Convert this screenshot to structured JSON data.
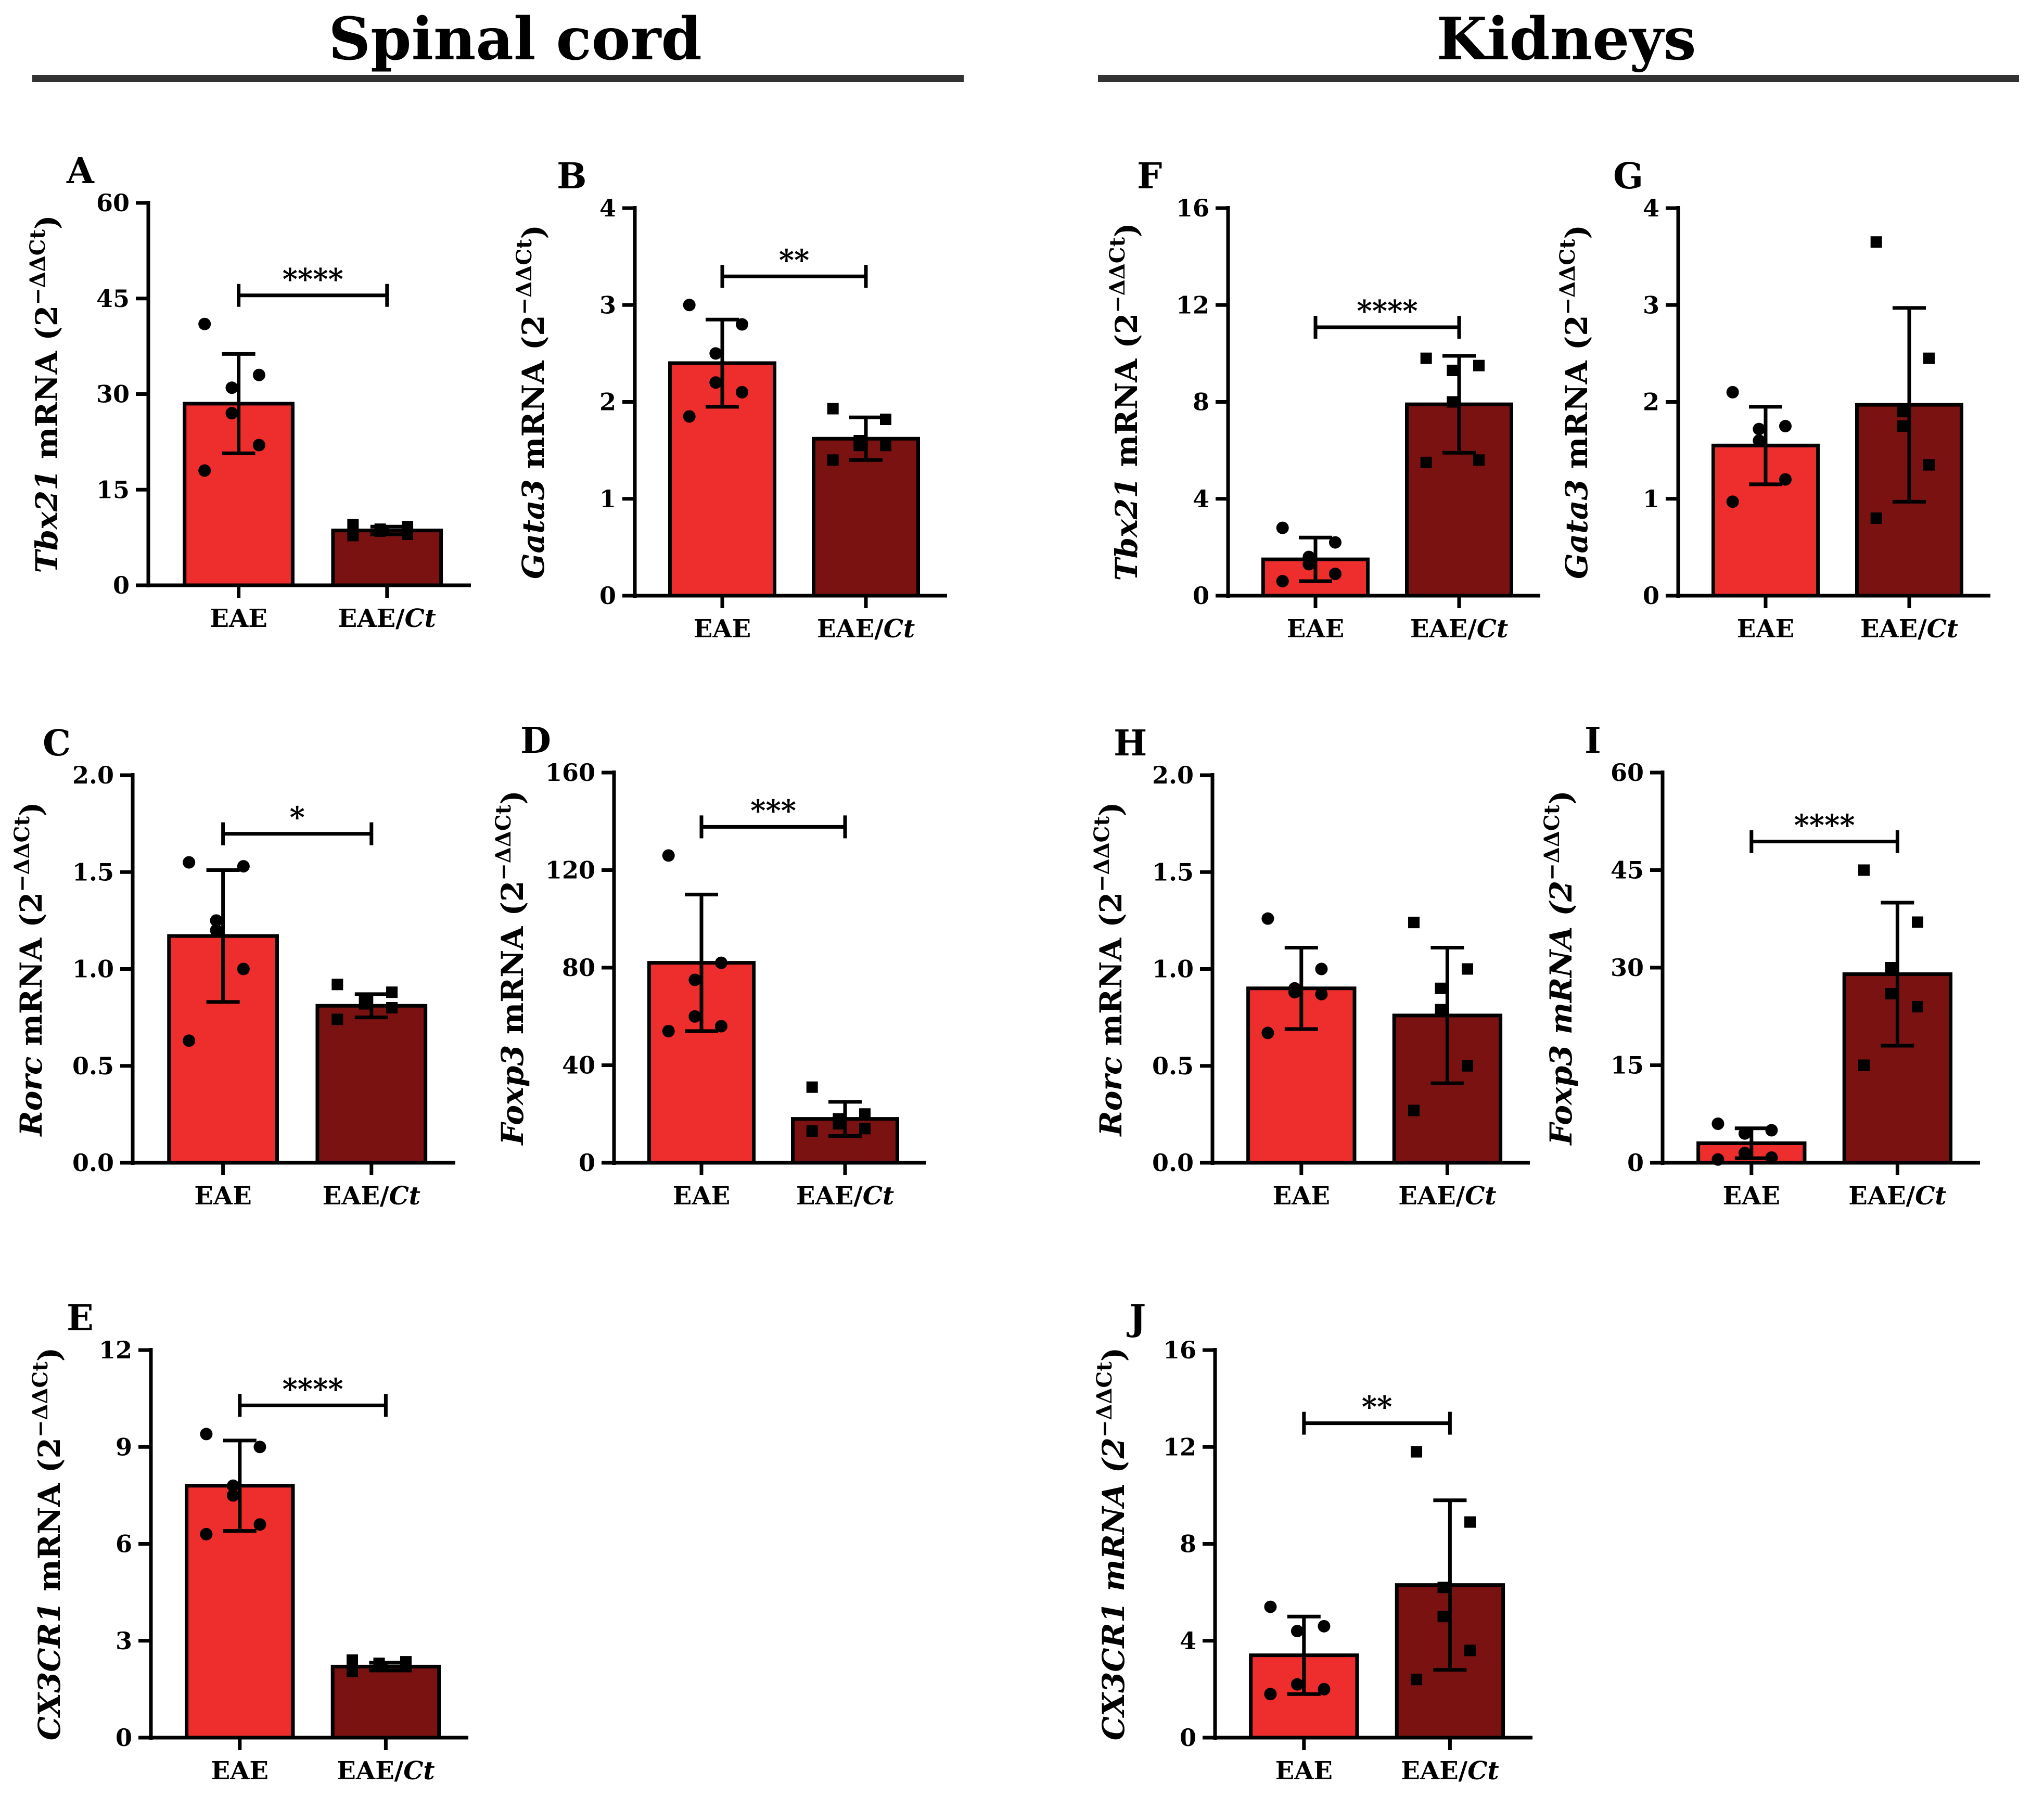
{
  "sections": [
    {
      "title": "Spinal cord"
    },
    {
      "title": "Kidneys"
    }
  ],
  "colors": {
    "eae": "#ee2d2d",
    "eae_ct": "#7a1212",
    "axis": "#000000",
    "rule": "#333333"
  },
  "chart_data": [
    {
      "panel": "A",
      "type": "bar",
      "gene": "Tbx21",
      "gene_italic": true,
      "ylabel_rest": " mRNA (2",
      "ylabel_exp": "−ΔΔCt",
      "ylabel_close": ")",
      "categories": [
        "EAE",
        "EAE/Ct"
      ],
      "ylim": [
        0,
        60
      ],
      "yticks": [
        0,
        15,
        30,
        45,
        60
      ],
      "tick_labels": [
        "0",
        "15",
        "30",
        "45",
        "60"
      ],
      "series": [
        {
          "values": [
            28.5,
            8.6
          ],
          "sd": [
            7.8,
            0.6
          ]
        }
      ],
      "points": [
        [
          41,
          33,
          31,
          27,
          22,
          18
        ],
        [
          9.5,
          9.2,
          8.8,
          8.5,
          8.0,
          7.8
        ]
      ],
      "markers": [
        "circle",
        "square"
      ],
      "significance": "****"
    },
    {
      "panel": "B",
      "type": "bar",
      "gene": "Gata3",
      "gene_italic": true,
      "ylabel_rest": " mRNA (2",
      "ylabel_exp": "−ΔΔCt",
      "ylabel_close": ")",
      "categories": [
        "EAE",
        "EAE/Ct"
      ],
      "ylim": [
        0,
        4
      ],
      "yticks": [
        0,
        1,
        2,
        3,
        4
      ],
      "tick_labels": [
        "0",
        "1",
        "2",
        "3",
        "4"
      ],
      "series": [
        {
          "values": [
            2.4,
            1.62
          ],
          "sd": [
            0.45,
            0.22
          ]
        }
      ],
      "points": [
        [
          3.0,
          2.8,
          2.5,
          2.2,
          2.1,
          1.85
        ],
        [
          1.93,
          1.82,
          1.6,
          1.55,
          1.55,
          1.4
        ]
      ],
      "markers": [
        "circle",
        "square"
      ],
      "significance": "**"
    },
    {
      "panel": "C",
      "type": "bar",
      "gene": "Rorc",
      "gene_italic": true,
      "ylabel_rest": " mRNA (2",
      "ylabel_exp": "−ΔΔCt",
      "ylabel_close": ")",
      "categories": [
        "EAE",
        "EAE/Ct"
      ],
      "ylim": [
        0,
        2.0
      ],
      "yticks": [
        0,
        0.5,
        1.0,
        1.5,
        2.0
      ],
      "tick_labels": [
        "0.0",
        "0.5",
        "1.0",
        "1.5",
        "2.0"
      ],
      "series": [
        {
          "values": [
            1.17,
            0.81
          ],
          "sd": [
            0.34,
            0.06
          ]
        }
      ],
      "points": [
        [
          1.55,
          1.53,
          1.25,
          1.2,
          1.0,
          0.63
        ],
        [
          0.92,
          0.88,
          0.84,
          0.82,
          0.8,
          0.74
        ]
      ],
      "markers": [
        "circle",
        "square"
      ],
      "significance": "*"
    },
    {
      "panel": "D",
      "type": "bar",
      "gene": "Foxp3",
      "gene_italic": true,
      "ylabel_rest": " mRNA (2",
      "ylabel_exp": "−ΔΔCt",
      "ylabel_close": ")",
      "categories": [
        "EAE",
        "EAE/Ct"
      ],
      "ylim": [
        0,
        160
      ],
      "yticks": [
        0,
        40,
        80,
        120,
        160
      ],
      "tick_labels": [
        "0",
        "40",
        "80",
        "120",
        "160"
      ],
      "series": [
        {
          "values": [
            82,
            18
          ],
          "sd": [
            28,
            7
          ]
        }
      ],
      "points": [
        [
          126,
          82,
          75,
          60,
          56,
          54
        ],
        [
          31,
          20,
          18,
          16,
          14,
          13
        ]
      ],
      "markers": [
        "circle",
        "square"
      ],
      "significance": "***"
    },
    {
      "panel": "E",
      "type": "bar",
      "gene": "CX3CR1",
      "gene_italic": true,
      "ylabel_rest": " mRNA (2",
      "ylabel_exp": "−ΔΔCt",
      "ylabel_close": ")",
      "categories": [
        "EAE",
        "EAE/Ct"
      ],
      "ylim": [
        0,
        12
      ],
      "yticks": [
        0,
        3,
        6,
        9,
        12
      ],
      "tick_labels": [
        "0",
        "3",
        "6",
        "9",
        "12"
      ],
      "series": [
        {
          "values": [
            7.8,
            2.2
          ],
          "sd": [
            1.4,
            0.12
          ]
        }
      ],
      "points": [
        [
          9.4,
          9.0,
          7.8,
          7.5,
          6.6,
          6.3
        ],
        [
          2.4,
          2.35,
          2.3,
          2.25,
          2.2,
          2.05
        ]
      ],
      "markers": [
        "circle",
        "square"
      ],
      "significance": "****"
    },
    {
      "panel": "F",
      "type": "bar",
      "gene": "Tbx21",
      "gene_italic": true,
      "ylabel_rest": " mRNA (2",
      "ylabel_exp": "−ΔΔCt",
      "ylabel_close": ")",
      "categories": [
        "EAE",
        "EAE/Ct"
      ],
      "ylim": [
        0,
        16
      ],
      "yticks": [
        0,
        4,
        8,
        12,
        16
      ],
      "tick_labels": [
        "0",
        "4",
        "8",
        "12",
        "16"
      ],
      "series": [
        {
          "values": [
            1.5,
            7.9
          ],
          "sd": [
            0.9,
            2.0
          ]
        }
      ],
      "points": [
        [
          2.8,
          2.2,
          1.6,
          1.3,
          0.9,
          0.6
        ],
        [
          9.8,
          9.5,
          9.3,
          8.0,
          5.6,
          5.5
        ]
      ],
      "markers": [
        "circle",
        "square"
      ],
      "significance": "****"
    },
    {
      "panel": "G",
      "type": "bar",
      "gene": "Gata3",
      "gene_italic": true,
      "ylabel_rest": " mRNA (2",
      "ylabel_exp": "−ΔΔCt",
      "ylabel_close": ")",
      "categories": [
        "EAE",
        "EAE/Ct"
      ],
      "ylim": [
        0,
        4
      ],
      "yticks": [
        0,
        1,
        2,
        3,
        4
      ],
      "tick_labels": [
        "0",
        "1",
        "2",
        "3",
        "4"
      ],
      "series": [
        {
          "values": [
            1.55,
            1.97
          ],
          "sd": [
            0.4,
            1.0
          ]
        }
      ],
      "points": [
        [
          2.1,
          1.75,
          1.72,
          1.6,
          1.2,
          0.97
        ],
        [
          3.65,
          2.45,
          1.9,
          1.75,
          1.35,
          0.8
        ]
      ],
      "markers": [
        "circle",
        "square"
      ],
      "significance": ""
    },
    {
      "panel": "H",
      "type": "bar",
      "gene": "Rorc",
      "gene_italic": true,
      "ylabel_rest": " mRNA (2",
      "ylabel_exp": "−ΔΔCt",
      "ylabel_close": ")",
      "categories": [
        "EAE",
        "EAE/Ct"
      ],
      "ylim": [
        0,
        2.0
      ],
      "yticks": [
        0,
        0.5,
        1.0,
        1.5,
        2.0
      ],
      "tick_labels": [
        "0.0",
        "0.5",
        "1.0",
        "1.5",
        "2.0"
      ],
      "series": [
        {
          "values": [
            0.9,
            0.76
          ],
          "sd": [
            0.21,
            0.35
          ]
        }
      ],
      "points": [
        [
          1.26,
          1.0,
          0.9,
          0.88,
          0.87,
          0.67
        ],
        [
          1.24,
          1.0,
          0.9,
          0.79,
          0.5,
          0.27
        ]
      ],
      "markers": [
        "circle",
        "square"
      ],
      "significance": ""
    },
    {
      "panel": "I",
      "type": "bar",
      "gene": "Foxp3",
      "gene_italic": true,
      "ylabel_rest": " mRNA (2",
      "ylabel_exp": "−ΔΔCt",
      "ylabel_close": ")",
      "ylabel_all_italic": true,
      "categories": [
        "EAE",
        "EAE/Ct"
      ],
      "ylim": [
        0,
        60
      ],
      "yticks": [
        0,
        15,
        30,
        45,
        60
      ],
      "tick_labels": [
        "0",
        "15",
        "30",
        "45",
        "60"
      ],
      "series": [
        {
          "values": [
            3,
            29
          ],
          "sd": [
            2.3,
            11
          ]
        }
      ],
      "points": [
        [
          6,
          5,
          4.5,
          1.5,
          0.8,
          0.5
        ],
        [
          45,
          37,
          30,
          26,
          24,
          15
        ]
      ],
      "markers": [
        "circle",
        "square"
      ],
      "significance": "****"
    },
    {
      "panel": "J",
      "type": "bar",
      "gene": "CX3CR1",
      "gene_italic": true,
      "ylabel_rest": " mRNA (2",
      "ylabel_exp": "−ΔΔCt",
      "ylabel_close": ")",
      "ylabel_all_italic": true,
      "categories": [
        "EAE",
        "EAE/Ct"
      ],
      "ylim": [
        0,
        16
      ],
      "yticks": [
        0,
        4,
        8,
        12,
        16
      ],
      "tick_labels": [
        "0",
        "4",
        "8",
        "12",
        "16"
      ],
      "series": [
        {
          "values": [
            3.4,
            6.3
          ],
          "sd": [
            1.6,
            3.5
          ]
        }
      ],
      "points": [
        [
          5.4,
          4.6,
          4.4,
          2.2,
          2.0,
          1.8
        ],
        [
          11.8,
          8.9,
          6.2,
          5.0,
          3.6,
          2.4
        ]
      ],
      "markers": [
        "circle",
        "square"
      ],
      "significance": "**"
    }
  ]
}
